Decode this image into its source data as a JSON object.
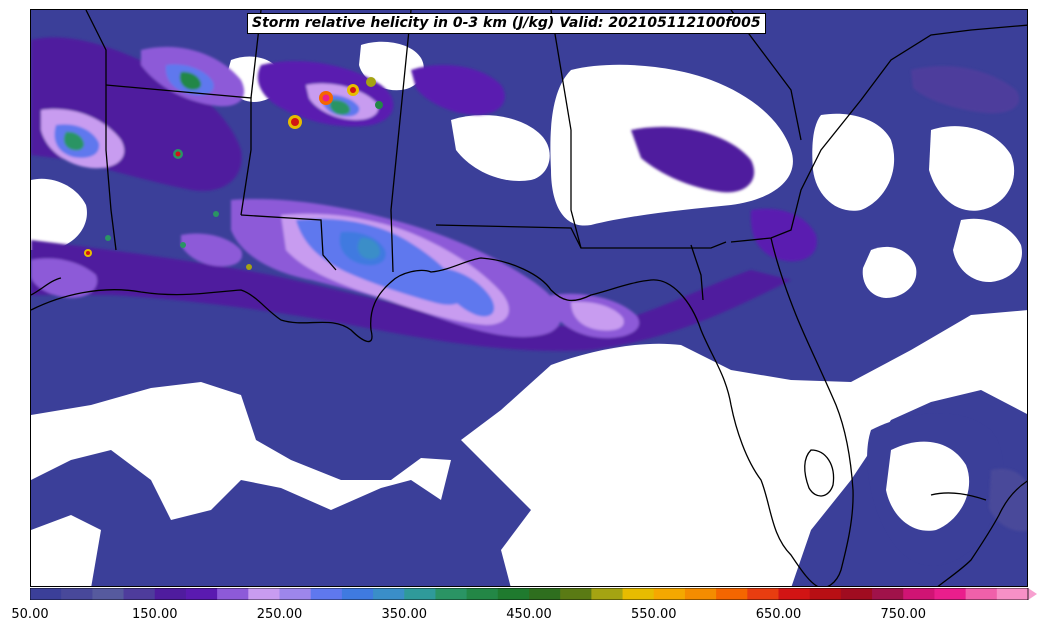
{
  "title": "Storm relative helicity in 0-3 km (J/kg) Valid: 202105112100f005",
  "colorbar": {
    "extend": "max",
    "ticks": [
      {
        "value": 50,
        "label": "50.00"
      },
      {
        "value": 150,
        "label": "150.00"
      },
      {
        "value": 250,
        "label": "250.00"
      },
      {
        "value": 350,
        "label": "350.00"
      },
      {
        "value": 450,
        "label": "450.00"
      },
      {
        "value": 550,
        "label": "550.00"
      },
      {
        "value": 650,
        "label": "650.00"
      },
      {
        "value": 750,
        "label": "750.00"
      }
    ],
    "levels_min": 50,
    "levels_max": 850,
    "level_step": 25,
    "colors": [
      "#3b3f99",
      "#48489a",
      "#565a9e",
      "#4e3c9c",
      "#4f1c9e",
      "#5a1ab0",
      "#8d5ad8",
      "#c89cf0",
      "#9d86ec",
      "#5f78ee",
      "#3f7ae0",
      "#3a8ec8",
      "#2f9a9a",
      "#2a9464",
      "#238746",
      "#1f7a2e",
      "#2e6e1e",
      "#5a7a14",
      "#a5a412",
      "#e7bc00",
      "#f5a800",
      "#f58c00",
      "#f56600",
      "#e83d10",
      "#d21414",
      "#b80f14",
      "#a00c20",
      "#a0124a",
      "#d01474",
      "#ea1e8c",
      "#f060aa",
      "#f790c6"
    ],
    "extend_color": "#f7a0d0"
  },
  "map": {
    "no_data_color": "#ffffff",
    "coastline_color": "#000000",
    "border_color": "#000000"
  }
}
